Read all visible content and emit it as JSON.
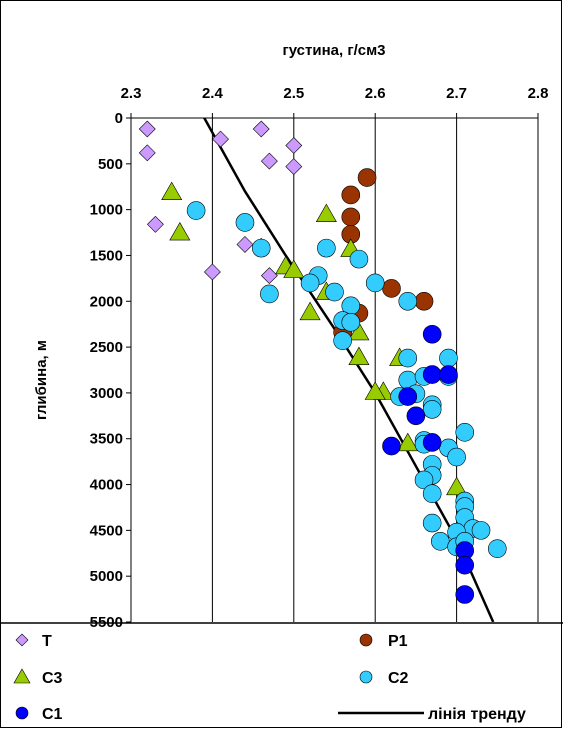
{
  "chart_data": {
    "type": "scatter",
    "title": "",
    "xlabel": "густина, г/см3",
    "ylabel": "глибина, м",
    "xlim": [
      2.3,
      2.8
    ],
    "ylim": [
      0,
      5500
    ],
    "x_axis_position": "top",
    "y_axis_inverted": true,
    "x_ticks": [
      "2.3",
      "2.4",
      "2.5",
      "2.6",
      "2.7",
      "2.8"
    ],
    "y_ticks": [
      "0",
      "500",
      "1000",
      "1500",
      "2000",
      "2500",
      "3000",
      "3500",
      "4000",
      "4500",
      "5000",
      "5500"
    ],
    "grid": "vertical",
    "legend_position": "bottom",
    "series": [
      {
        "name": "T",
        "marker": "diamond",
        "color": "#cc99ff",
        "points": [
          [
            2.32,
            120
          ],
          [
            2.46,
            120
          ],
          [
            2.32,
            380
          ],
          [
            2.41,
            230
          ],
          [
            2.5,
            300
          ],
          [
            2.47,
            470
          ],
          [
            2.5,
            530
          ],
          [
            2.33,
            1160
          ],
          [
            2.44,
            1380
          ],
          [
            2.46,
            1400
          ],
          [
            2.47,
            1720
          ],
          [
            2.4,
            1680
          ]
        ]
      },
      {
        "name": "P1",
        "marker": "circle",
        "color": "#993300",
        "points": [
          [
            2.59,
            650
          ],
          [
            2.57,
            840
          ],
          [
            2.57,
            1080
          ],
          [
            2.57,
            1270
          ],
          [
            2.62,
            1860
          ],
          [
            2.66,
            2000
          ],
          [
            2.58,
            2130
          ],
          [
            2.56,
            2340
          ]
        ]
      },
      {
        "name": "C3",
        "marker": "triangle",
        "color": "#99cc00",
        "points": [
          [
            2.35,
            810
          ],
          [
            2.36,
            1250
          ],
          [
            2.54,
            1050
          ],
          [
            2.57,
            1430
          ],
          [
            2.49,
            1620
          ],
          [
            2.5,
            1660
          ],
          [
            2.54,
            1900
          ],
          [
            2.52,
            2120
          ],
          [
            2.58,
            2340
          ],
          [
            2.58,
            2610
          ],
          [
            2.63,
            2620
          ],
          [
            2.61,
            2990
          ],
          [
            2.6,
            2990
          ],
          [
            2.64,
            3550
          ],
          [
            2.7,
            4030
          ]
        ]
      },
      {
        "name": "C2",
        "marker": "circle",
        "color": "#33ccff",
        "points": [
          [
            2.38,
            1010
          ],
          [
            2.44,
            1140
          ],
          [
            2.46,
            1420
          ],
          [
            2.47,
            1920
          ],
          [
            2.54,
            1420
          ],
          [
            2.53,
            1720
          ],
          [
            2.52,
            1800
          ],
          [
            2.55,
            1900
          ],
          [
            2.58,
            1540
          ],
          [
            2.6,
            1800
          ],
          [
            2.64,
            2000
          ],
          [
            2.57,
            2050
          ],
          [
            2.56,
            2210
          ],
          [
            2.56,
            2430
          ],
          [
            2.57,
            2230
          ],
          [
            2.64,
            2620
          ],
          [
            2.69,
            2620
          ],
          [
            2.64,
            2860
          ],
          [
            2.66,
            2820
          ],
          [
            2.69,
            2820
          ],
          [
            2.63,
            3040
          ],
          [
            2.65,
            3010
          ],
          [
            2.67,
            3130
          ],
          [
            2.67,
            3180
          ],
          [
            2.66,
            3520
          ],
          [
            2.66,
            3560
          ],
          [
            2.71,
            3430
          ],
          [
            2.69,
            3600
          ],
          [
            2.7,
            3700
          ],
          [
            2.67,
            3780
          ],
          [
            2.67,
            3900
          ],
          [
            2.66,
            3950
          ],
          [
            2.67,
            4100
          ],
          [
            2.71,
            4180
          ],
          [
            2.71,
            4240
          ],
          [
            2.71,
            4360
          ],
          [
            2.72,
            4480
          ],
          [
            2.67,
            4420
          ],
          [
            2.7,
            4520
          ],
          [
            2.73,
            4500
          ],
          [
            2.68,
            4620
          ],
          [
            2.7,
            4680
          ],
          [
            2.75,
            4700
          ],
          [
            2.71,
            4620
          ]
        ]
      },
      {
        "name": "C1",
        "marker": "circle",
        "color": "#0000ff",
        "points": [
          [
            2.67,
            2360
          ],
          [
            2.67,
            2800
          ],
          [
            2.69,
            2800
          ],
          [
            2.64,
            3040
          ],
          [
            2.65,
            3250
          ],
          [
            2.67,
            3540
          ],
          [
            2.62,
            3580
          ],
          [
            2.71,
            4720
          ],
          [
            2.71,
            4880
          ],
          [
            2.71,
            5200
          ]
        ]
      },
      {
        "name": "лінія тренду",
        "marker": "line",
        "color": "#000000",
        "points": [
          [
            2.39,
            0
          ],
          [
            2.44,
            800
          ],
          [
            2.49,
            1500
          ],
          [
            2.55,
            2300
          ],
          [
            2.6,
            3000
          ],
          [
            2.65,
            3800
          ],
          [
            2.7,
            4600
          ],
          [
            2.745,
            5500
          ]
        ]
      }
    ]
  }
}
